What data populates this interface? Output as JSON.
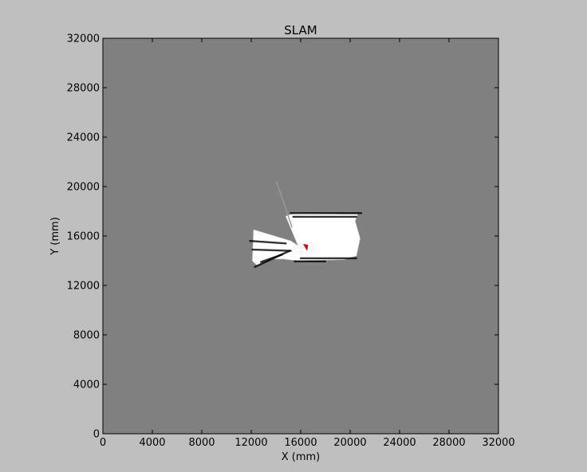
{
  "chart_data": {
    "type": "heatmap",
    "title": "SLAM",
    "xlabel": "X (mm)",
    "ylabel": "Y (mm)",
    "xlim": [
      0,
      32000
    ],
    "ylim": [
      0,
      32000
    ],
    "x_ticks": [
      0,
      4000,
      8000,
      12000,
      16000,
      20000,
      24000,
      28000,
      32000
    ],
    "y_ticks": [
      0,
      4000,
      8000,
      12000,
      16000,
      20000,
      24000,
      28000,
      32000
    ],
    "grid": false,
    "legend": "none",
    "colors": {
      "figure_background": "#bfbfbf",
      "unknown_cell": "#808080",
      "free_space": "#ffffff",
      "obstacle": "#000000",
      "robot_marker": "#e00000"
    },
    "free_region_outline": [
      [
        12200,
        16500
      ],
      [
        15200,
        15600
      ],
      [
        15800,
        15200
      ],
      [
        14800,
        17600
      ],
      [
        15500,
        17850
      ],
      [
        20600,
        17750
      ],
      [
        20400,
        17200
      ],
      [
        20800,
        15800
      ],
      [
        20500,
        14400
      ],
      [
        19500,
        14100
      ],
      [
        15800,
        14000
      ],
      [
        14600,
        14150
      ],
      [
        13500,
        14150
      ],
      [
        12500,
        13600
      ],
      [
        12100,
        14000
      ]
    ],
    "obstacle_segments": [
      [
        [
          15200,
          17850
        ],
        [
          20900,
          17850
        ]
      ],
      [
        [
          15400,
          17550
        ],
        [
          20500,
          17550
        ]
      ],
      [
        [
          16000,
          14200
        ],
        [
          20500,
          14200
        ]
      ],
      [
        [
          15500,
          13950
        ],
        [
          18000,
          13950
        ]
      ],
      [
        [
          11900,
          15600
        ],
        [
          14800,
          15400
        ]
      ],
      [
        [
          12100,
          14900
        ],
        [
          15200,
          14800
        ]
      ],
      [
        [
          12300,
          13500
        ],
        [
          15100,
          14800
        ]
      ],
      [
        [
          12800,
          13900
        ],
        [
          14500,
          14500
        ]
      ]
    ],
    "ray_segments": [
      [
        [
          14050,
          20400
        ],
        [
          15300,
          16700
        ]
      ]
    ],
    "robot": {
      "x": 16400,
      "y": 15100
    }
  }
}
